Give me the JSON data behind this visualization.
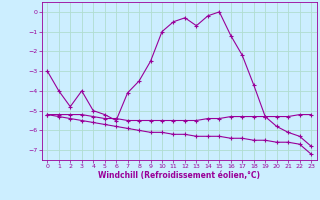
{
  "xlabel": "Windchill (Refroidissement éolien,°C)",
  "background_color": "#cceeff",
  "grid_color": "#b0ddd0",
  "line_color": "#990099",
  "xlim": [
    -0.5,
    23.5
  ],
  "ylim": [
    -7.5,
    0.5
  ],
  "yticks": [
    0,
    -1,
    -2,
    -3,
    -4,
    -5,
    -6,
    -7
  ],
  "xticks": [
    0,
    1,
    2,
    3,
    4,
    5,
    6,
    7,
    8,
    9,
    10,
    11,
    12,
    13,
    14,
    15,
    16,
    17,
    18,
    19,
    20,
    21,
    22,
    23
  ],
  "series1": {
    "x": [
      0,
      1,
      2,
      3,
      4,
      5,
      6,
      7,
      8,
      9,
      10,
      11,
      12,
      13,
      14,
      15,
      16,
      17,
      18,
      19,
      20,
      21,
      22,
      23
    ],
    "y": [
      -3.0,
      -4.0,
      -4.8,
      -4.0,
      -5.0,
      -5.2,
      -5.5,
      -4.1,
      -3.5,
      -2.5,
      -1.0,
      -0.5,
      -0.3,
      -0.7,
      -0.2,
      0.0,
      -1.2,
      -2.2,
      -3.7,
      -5.3,
      -5.8,
      -6.1,
      -6.3,
      -6.8
    ]
  },
  "series2": {
    "x": [
      0,
      1,
      2,
      3,
      4,
      5,
      6,
      7,
      8,
      9,
      10,
      11,
      12,
      13,
      14,
      15,
      16,
      17,
      18,
      19,
      20,
      21,
      22,
      23
    ],
    "y": [
      -5.2,
      -5.2,
      -5.2,
      -5.2,
      -5.3,
      -5.4,
      -5.4,
      -5.5,
      -5.5,
      -5.5,
      -5.5,
      -5.5,
      -5.5,
      -5.5,
      -5.4,
      -5.4,
      -5.3,
      -5.3,
      -5.3,
      -5.3,
      -5.3,
      -5.3,
      -5.2,
      -5.2
    ]
  },
  "series3": {
    "x": [
      0,
      1,
      2,
      3,
      4,
      5,
      6,
      7,
      8,
      9,
      10,
      11,
      12,
      13,
      14,
      15,
      16,
      17,
      18,
      19,
      20,
      21,
      22,
      23
    ],
    "y": [
      -5.2,
      -5.3,
      -5.4,
      -5.5,
      -5.6,
      -5.7,
      -5.8,
      -5.9,
      -6.0,
      -6.1,
      -6.1,
      -6.2,
      -6.2,
      -6.3,
      -6.3,
      -6.3,
      -6.4,
      -6.4,
      -6.5,
      -6.5,
      -6.6,
      -6.6,
      -6.7,
      -7.2
    ]
  },
  "tick_fontsize": 4.5,
  "xlabel_fontsize": 5.5
}
